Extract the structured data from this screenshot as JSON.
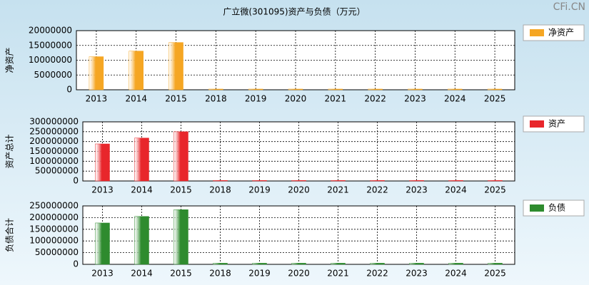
{
  "title": "广立微(301095)资产与负债（万元）",
  "watermark": "CFi.CN",
  "chart_data": [
    {
      "type": "bar",
      "y_label": "净资产",
      "categories": [
        "2013",
        "2014",
        "2015",
        "2018",
        "2019",
        "2020",
        "2021",
        "2022",
        "2023",
        "2024",
        "2025"
      ],
      "series": [
        {
          "name": "净资产",
          "color": "#f5a623",
          "values": [
            11200000,
            13100000,
            16000000,
            250000,
            250000,
            250000,
            250000,
            250000,
            250000,
            250000,
            250000
          ]
        }
      ],
      "ylim": [
        0,
        20000000
      ],
      "yticks": [
        0,
        5000000,
        10000000,
        15000000,
        20000000
      ],
      "grid": true
    },
    {
      "type": "bar",
      "y_label": "资产总计",
      "categories": [
        "2013",
        "2014",
        "2015",
        "2018",
        "2019",
        "2020",
        "2021",
        "2022",
        "2023",
        "2024",
        "2025"
      ],
      "series": [
        {
          "name": "资产",
          "color": "#e8262b",
          "values": [
            188000000,
            218000000,
            250000000,
            3000000,
            3000000,
            3000000,
            3000000,
            3000000,
            3000000,
            3000000,
            3000000
          ]
        }
      ],
      "ylim": [
        0,
        300000000
      ],
      "yticks": [
        0,
        50000000,
        100000000,
        150000000,
        200000000,
        250000000,
        300000000
      ],
      "grid": true
    },
    {
      "type": "bar",
      "y_label": "负债合计",
      "categories": [
        "2013",
        "2014",
        "2015",
        "2018",
        "2019",
        "2020",
        "2021",
        "2022",
        "2023",
        "2024",
        "2025"
      ],
      "series": [
        {
          "name": "负债",
          "color": "#2e8b2e",
          "values": [
            177000000,
            205000000,
            234000000,
            5000000,
            5000000,
            5000000,
            5000000,
            5000000,
            5000000,
            5000000,
            5000000
          ]
        }
      ],
      "ylim": [
        0,
        250000000
      ],
      "yticks": [
        0,
        50000000,
        100000000,
        150000000,
        200000000,
        250000000
      ],
      "grid": true
    }
  ]
}
